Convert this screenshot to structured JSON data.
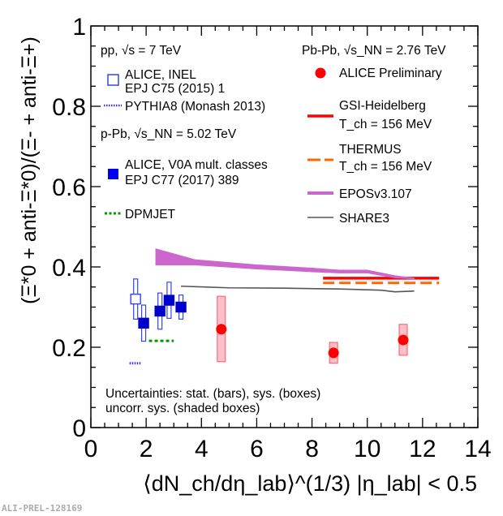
{
  "chart_data": {
    "type": "scatter",
    "title": "",
    "xlabel": "⟨dN_ch/dη_lab⟩^(1/3) |η_lab| < 0.5",
    "ylabel": "(Ξ*0 + anti-Ξ*0)/(Ξ- + anti-Ξ+)",
    "xlim": [
      0,
      14
    ],
    "ylim": [
      0,
      1
    ],
    "x_ticks": [
      "0",
      "2",
      "4",
      "6",
      "8",
      "10",
      "12",
      "14"
    ],
    "y_ticks": [
      "0",
      "0.2",
      "0.4",
      "0.6",
      "0.8",
      "1"
    ],
    "grid": false,
    "legend_left": {
      "pp_header": "pp, √s = 7 TeV",
      "pp_entry_1": "ALICE, INEL",
      "pp_entry_1b": "EPJ C75 (2015) 1",
      "pp_entry_2": "PYTHIA8 (Monash 2013)",
      "ppb_header": "p-Pb, √s_NN = 5.02 TeV",
      "ppb_entry_1": "ALICE, V0A mult. classes",
      "ppb_entry_1b": "EPJ C77 (2017) 389",
      "ppb_entry_2": "DPMJET"
    },
    "legend_right": {
      "header": "Pb-Pb, √s_NN = 2.76 TeV",
      "entry_1": "ALICE Preliminary",
      "entry_2": "GSI-Heidelberg",
      "entry_2b": "T_ch = 156 MeV",
      "entry_3": "THERMUS",
      "entry_3b": "T_ch = 156 MeV",
      "entry_4": "EPOSv3.107",
      "entry_5": "SHARE3"
    },
    "annotation_1": "Uncertainties: stat. (bars), sys. (boxes)",
    "annotation_2": "uncorr. sys. (shaded boxes)",
    "series": [
      {
        "name": "ALICE pp INEL",
        "color": "#0000cc",
        "marker": "open-square",
        "points": [
          {
            "x": 1.62,
            "y": 0.32,
            "stat": 0.05,
            "sys": 0.02
          }
        ]
      },
      {
        "name": "ALICE p-Pb V0A mult. classes",
        "color": "#0000cc",
        "marker": "filled-square",
        "points": [
          {
            "x": 1.91,
            "y": 0.26,
            "stat": 0.045,
            "sys": 0.02
          },
          {
            "x": 2.5,
            "y": 0.29,
            "stat": 0.045,
            "sys": 0.02
          },
          {
            "x": 2.83,
            "y": 0.317,
            "stat": 0.045,
            "sys": 0.02
          },
          {
            "x": 3.26,
            "y": 0.3,
            "stat": 0.03,
            "sys": 0.02
          }
        ]
      },
      {
        "name": "ALICE Preliminary Pb-Pb",
        "color": "#ff0000",
        "marker": "circle",
        "points": [
          {
            "x": 4.72,
            "y": 0.245,
            "sys_lo": 0.164,
            "sys_hi": 0.327
          },
          {
            "x": 8.78,
            "y": 0.186,
            "sys_lo": 0.16,
            "sys_hi": 0.212
          },
          {
            "x": 11.3,
            "y": 0.218,
            "sys_lo": 0.18,
            "sys_hi": 0.257
          }
        ]
      },
      {
        "name": "PYTHIA8 (Monash 2013)",
        "color": "#3333dd",
        "style": "dotted",
        "x": [
          1.4,
          1.8
        ],
        "y": [
          0.16,
          0.16
        ]
      },
      {
        "name": "DPMJET",
        "color": "#009900",
        "style": "dotted",
        "x": [
          2.1,
          3.0
        ],
        "y": [
          0.216,
          0.216
        ]
      },
      {
        "name": "GSI-Heidelberg",
        "color": "#ff0000",
        "style": "solid",
        "x": [
          8.4,
          12.6
        ],
        "y": [
          0.372,
          0.372
        ]
      },
      {
        "name": "THERMUS",
        "color": "#ff6600",
        "style": "dashed",
        "x": [
          8.4,
          12.6
        ],
        "y": [
          0.36,
          0.36
        ]
      },
      {
        "name": "EPOSv3.107",
        "color": "#cc66cc",
        "style": "band",
        "x": [
          2.35,
          3.76,
          6.0,
          8.0,
          9.0,
          10.0,
          11.0,
          11.7
        ],
        "y_hi": [
          0.445,
          0.418,
          0.405,
          0.397,
          0.392,
          0.392,
          0.378,
          0.372
        ],
        "y_lo": [
          0.405,
          0.405,
          0.395,
          0.388,
          0.385,
          0.385,
          0.373,
          0.37
        ]
      },
      {
        "name": "SHARE3",
        "color": "#555555",
        "style": "solid",
        "x": [
          3.26,
          5.0,
          7.0,
          9.0,
          10.5,
          11.0,
          11.7
        ],
        "y": [
          0.352,
          0.348,
          0.347,
          0.345,
          0.342,
          0.338,
          0.34
        ]
      }
    ]
  },
  "watermark": "ALI-PREL-128169"
}
